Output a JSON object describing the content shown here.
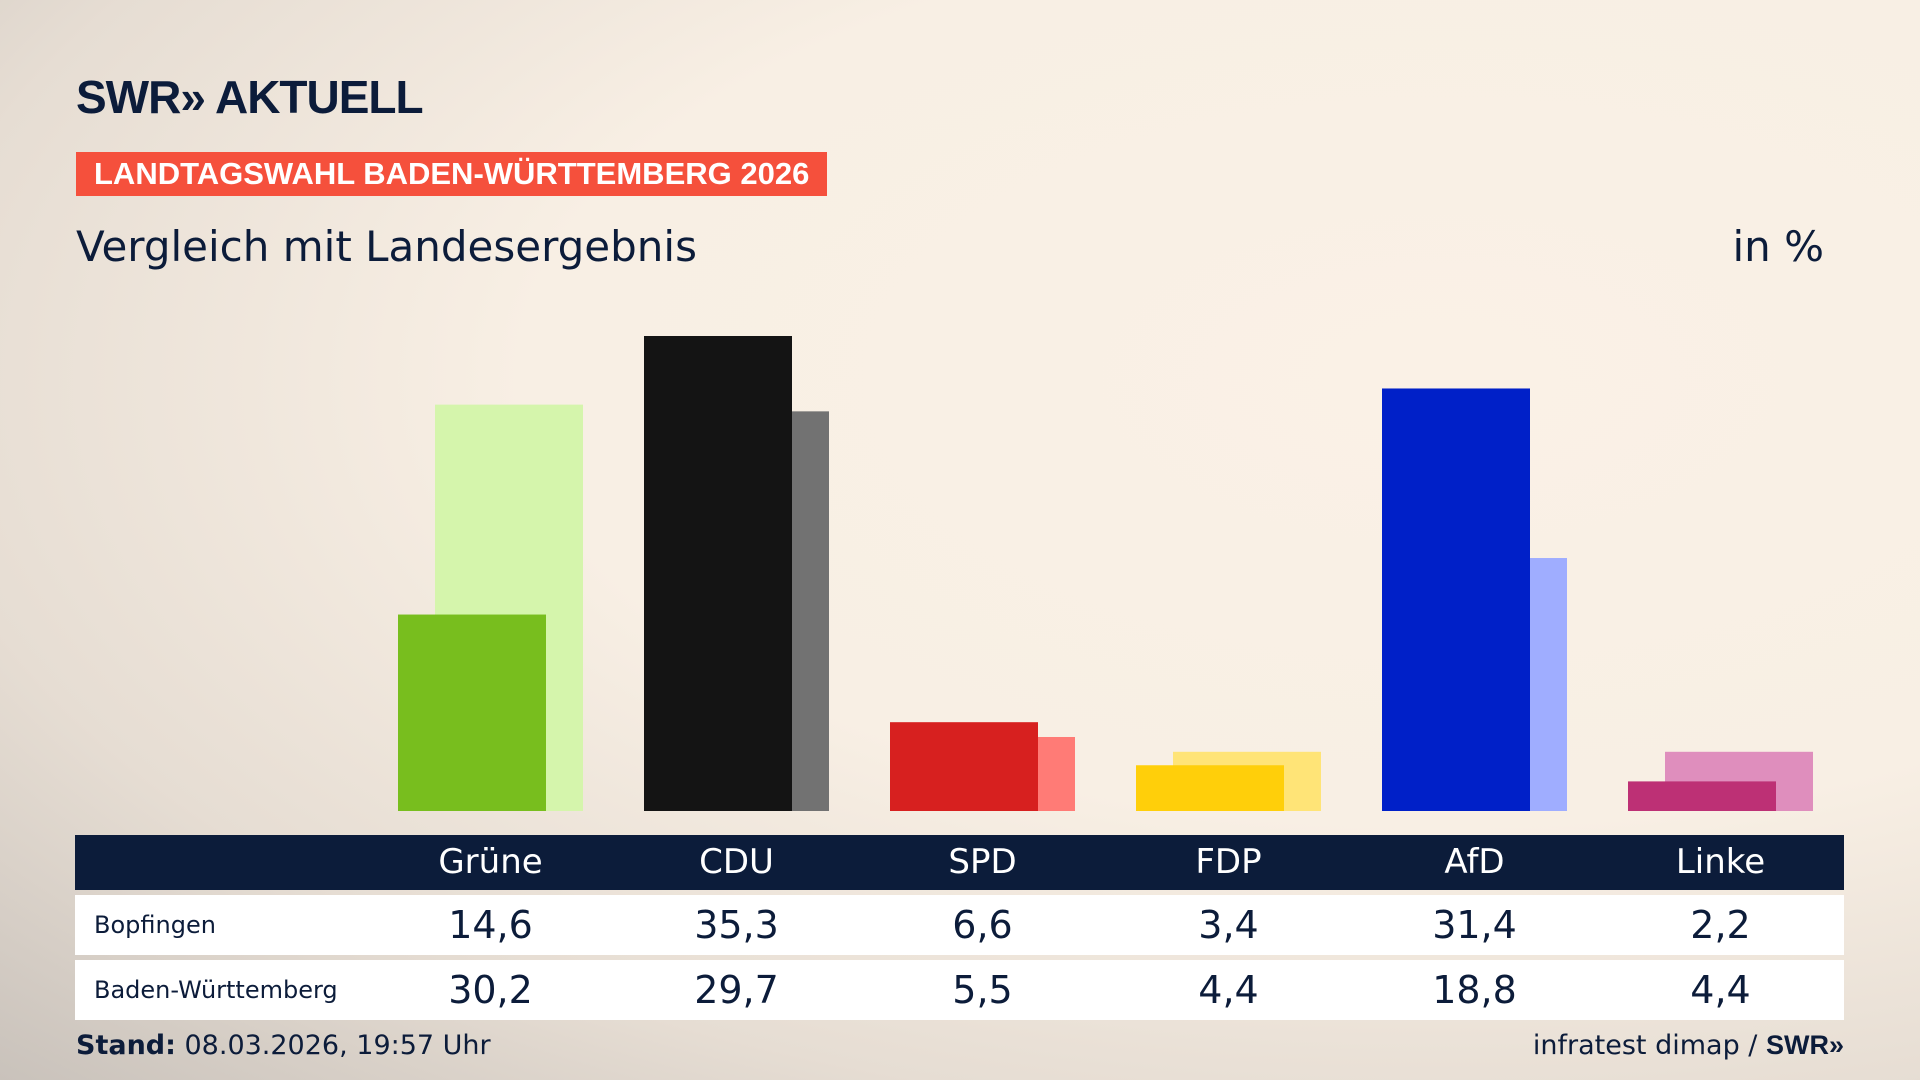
{
  "logo": "SWR» AKTUELL",
  "banner": "LANDTAGSWAHL BADEN-WÜRTTEMBERG 2026",
  "subtitle": "Vergleich mit Landesergebnis",
  "unit": "in %",
  "footer": {
    "stand_label": "Stand:",
    "stand_value": " 08.03.2026, 19:57 Uhr",
    "source": "infratest dimap / ",
    "source_logo": "SWR»"
  },
  "chart_data": {
    "type": "bar",
    "categories": [
      "Grüne",
      "CDU",
      "SPD",
      "FDP",
      "AfD",
      "Linke"
    ],
    "series": [
      {
        "name": "Bopfingen",
        "values": [
          14.6,
          35.3,
          6.6,
          3.4,
          31.4,
          2.2
        ],
        "colors": [
          "#78be1e",
          "#141414",
          "#d7201f",
          "#ffcf0a",
          "#0020c8",
          "#bd3075"
        ]
      },
      {
        "name": "Baden-Württemberg",
        "values": [
          30.2,
          29.7,
          5.5,
          4.4,
          18.8,
          4.4
        ],
        "colors": [
          "#d5f5ac",
          "#727272",
          "#ff7b76",
          "#ffe477",
          "#9fadff",
          "#df8ebd"
        ]
      }
    ],
    "ylim": [
      0,
      35.3
    ],
    "grid": false
  },
  "table": {
    "rows": [
      {
        "label": "Bopfingen",
        "values": [
          "14,6",
          "35,3",
          "6,6",
          "3,4",
          "31,4",
          "2,2"
        ]
      },
      {
        "label": "Baden-Württemberg",
        "values": [
          "30,2",
          "29,7",
          "5,5",
          "4,4",
          "18,8",
          "4,4"
        ]
      }
    ]
  }
}
